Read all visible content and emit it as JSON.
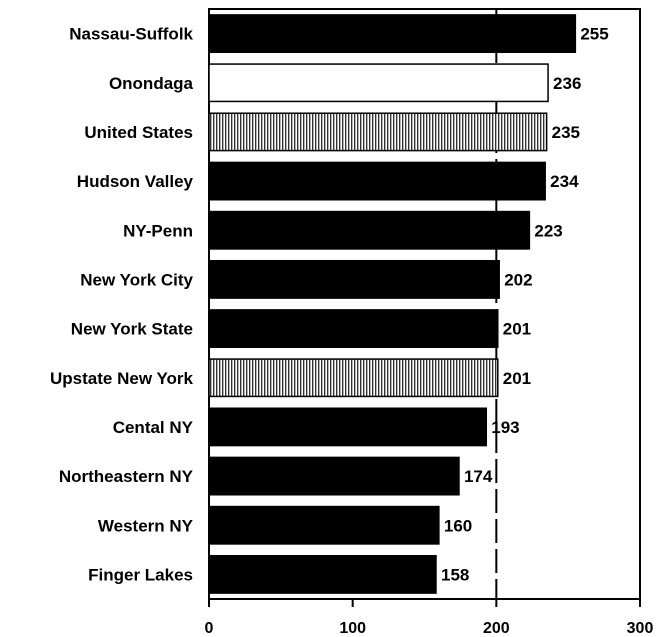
{
  "chart_data": {
    "type": "bar",
    "orientation": "horizontal",
    "categories": [
      "Nassau-Suffolk",
      "Onondaga",
      "United States",
      "Hudson Valley",
      "NY-Penn",
      "New York City",
      "New York State",
      "Upstate New York",
      "Cental NY",
      "Northeastern NY",
      "Western NY",
      "Finger Lakes"
    ],
    "values": [
      255,
      236,
      235,
      234,
      223,
      202,
      201,
      201,
      193,
      174,
      160,
      158
    ],
    "value_labels": [
      "255",
      "236",
      "235",
      "234",
      "223",
      "202",
      "201",
      "201",
      "193",
      "174",
      "160",
      "158"
    ],
    "bar_styles": [
      "solid",
      "white",
      "hatched",
      "solid",
      "solid",
      "solid",
      "solid",
      "hatched",
      "solid",
      "solid",
      "solid",
      "solid"
    ],
    "colors": {
      "solid": "#000000",
      "white": "#ffffff",
      "hatched": "#000000"
    },
    "xlim": [
      0,
      300
    ],
    "xticks": [
      0,
      100,
      200,
      300
    ],
    "xtick_labels": [
      "0",
      "100",
      "200",
      "300"
    ],
    "reference_line": 200,
    "title": "",
    "xlabel": "",
    "ylabel": "",
    "grid": false,
    "legend": "none"
  }
}
